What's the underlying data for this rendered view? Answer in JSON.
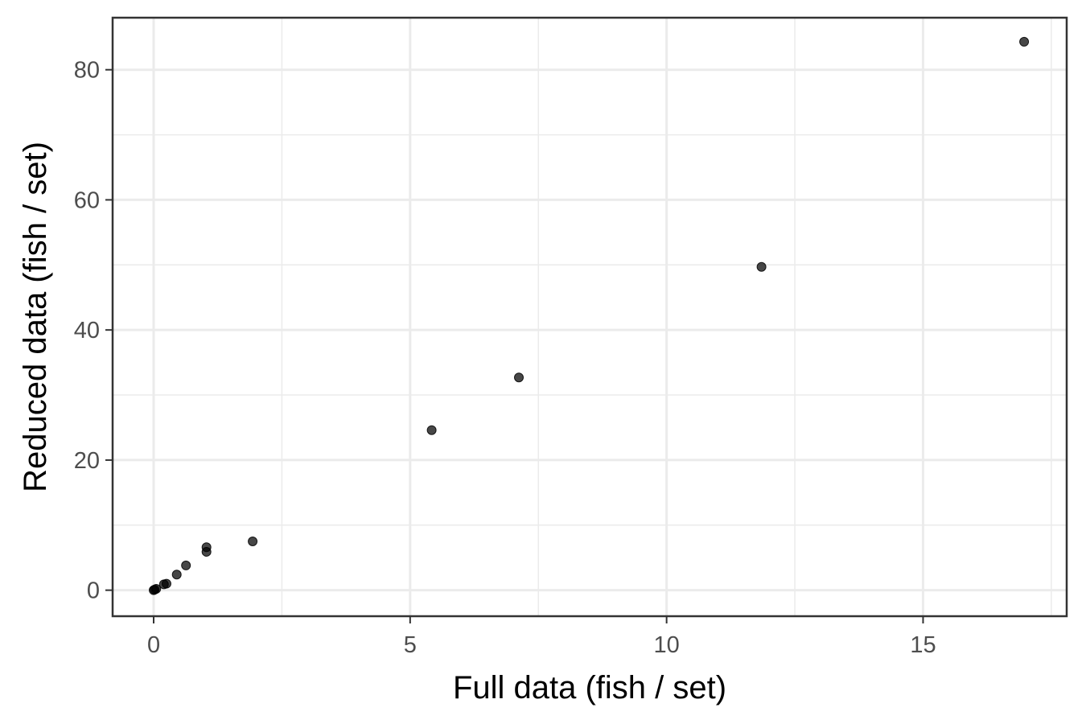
{
  "chart_data": {
    "type": "scatter",
    "xlabel": "Full data (fish / set)",
    "ylabel": "Reduced data (fish / set)",
    "xlim": [
      -0.8,
      17.8
    ],
    "ylim": [
      -4,
      88
    ],
    "x_ticks": [
      0,
      5,
      10,
      15
    ],
    "y_ticks": [
      0,
      20,
      40,
      60,
      80
    ],
    "x_minor_ticks": [
      2.5,
      7.5,
      12.5,
      17.5
    ],
    "y_minor_ticks": [
      10,
      30,
      50,
      70
    ],
    "grid": true,
    "legend": "none",
    "point_color": "#000000",
    "series": [
      {
        "x": [
          0.0,
          0.02,
          0.05,
          0.2,
          0.25,
          0.45,
          0.63,
          1.03,
          1.03,
          1.93,
          5.42,
          7.12,
          11.85,
          16.97
        ],
        "y": [
          0.0,
          0.1,
          0.2,
          0.9,
          1.0,
          2.4,
          3.8,
          5.9,
          6.6,
          7.5,
          24.6,
          32.7,
          49.7,
          84.3
        ]
      }
    ]
  }
}
